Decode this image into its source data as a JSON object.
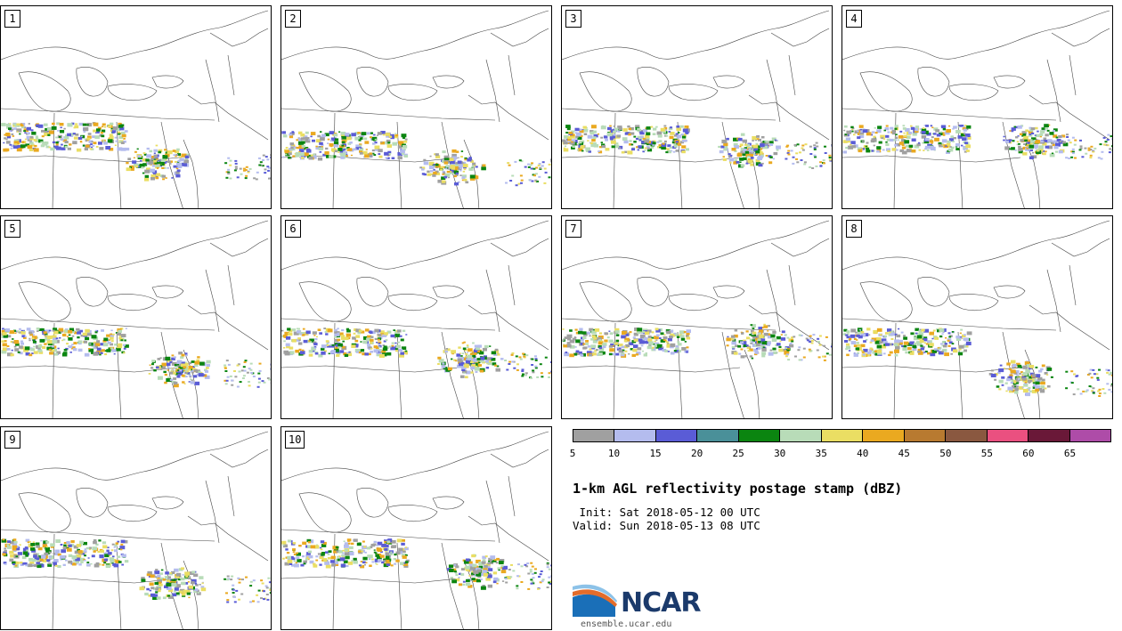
{
  "panels": [
    {
      "label": "1"
    },
    {
      "label": "2"
    },
    {
      "label": "3"
    },
    {
      "label": "4"
    },
    {
      "label": "5"
    },
    {
      "label": "6"
    },
    {
      "label": "7"
    },
    {
      "label": "8"
    },
    {
      "label": "9"
    },
    {
      "label": "10"
    }
  ],
  "colorbar": {
    "colors": [
      "#a0a0a0",
      "#b4bcee",
      "#5a5cd6",
      "#4a9099",
      "#0b8510",
      "#b8dcb8",
      "#eade63",
      "#eaa920",
      "#b87a30",
      "#8a5840",
      "#ea5080",
      "#6a1838",
      "#ae4ca8"
    ],
    "ticks": [
      "5",
      "10",
      "15",
      "20",
      "25",
      "30",
      "35",
      "40",
      "45",
      "50",
      "55",
      "60",
      "65"
    ]
  },
  "title": "1-km AGL reflectivity postage stamp (dBZ)",
  "init": " Init: Sat 2018-05-12 00 UTC",
  "valid": "Valid: Sun 2018-05-13 08 UTC",
  "logo_text": "NCAR",
  "site": "ensemble.ucar.edu"
}
